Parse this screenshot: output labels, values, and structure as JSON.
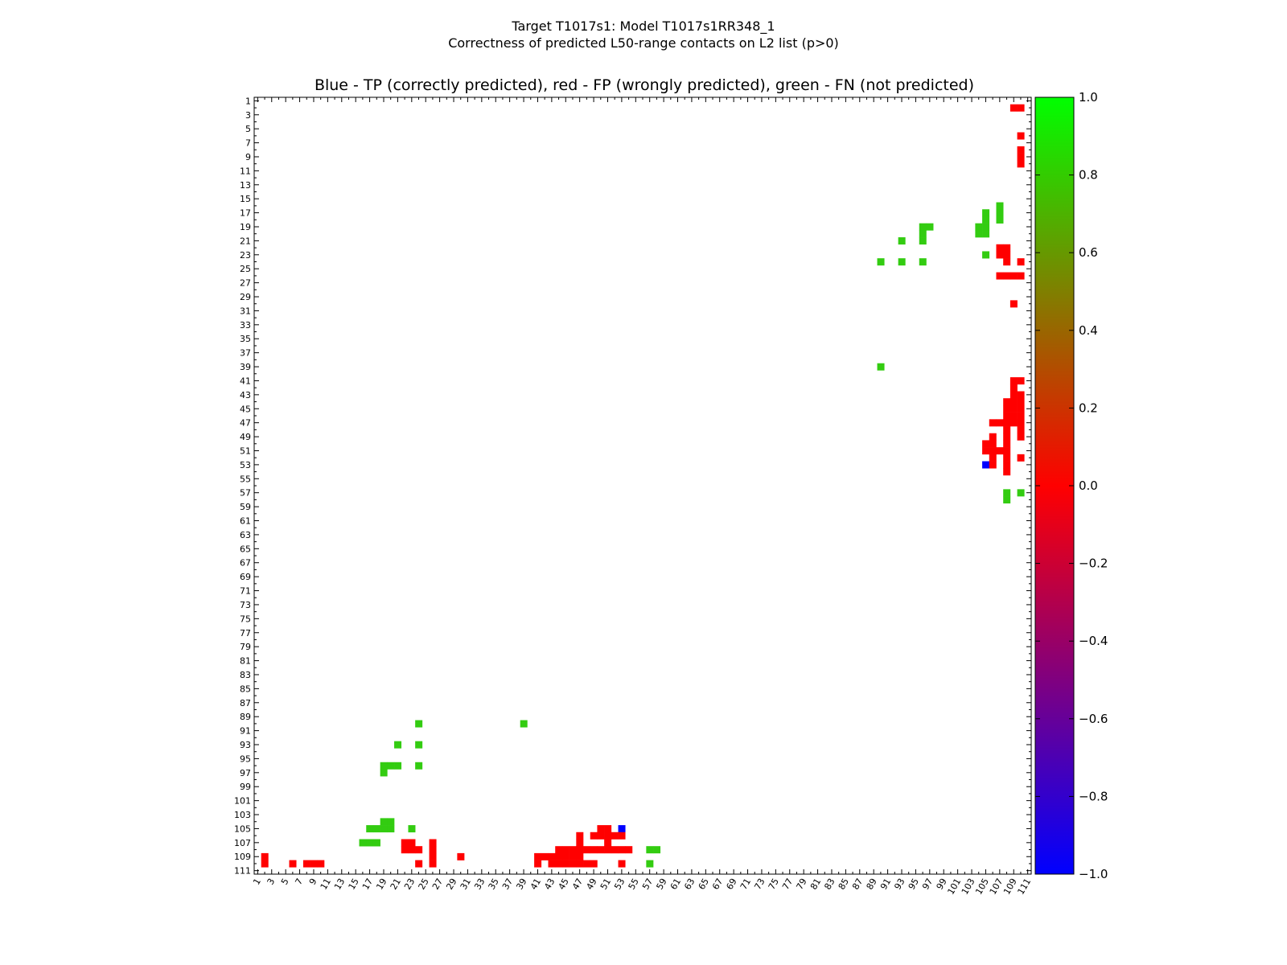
{
  "figure": {
    "suptitle_line1": "Target T1017s1: Model T1017s1RR348_1",
    "suptitle_line2": "Correctness of predicted L50-range contacts on L2 list (p>0)",
    "title": "Blue - TP (correctly predicted), red - FP (wrongly predicted), green - FN (not predicted)"
  },
  "chart_data": {
    "type": "heatmap",
    "title": "Blue - TP (correctly predicted), red - FP (wrongly predicted), green - FN (not predicted)",
    "xlabel": "",
    "ylabel": "",
    "x_range": [
      1,
      111
    ],
    "y_range": [
      1,
      111
    ],
    "x_ticks": [
      1,
      3,
      5,
      7,
      9,
      11,
      13,
      15,
      17,
      19,
      21,
      23,
      25,
      27,
      29,
      31,
      33,
      35,
      37,
      39,
      41,
      43,
      45,
      47,
      49,
      51,
      53,
      55,
      57,
      59,
      61,
      63,
      65,
      67,
      69,
      71,
      73,
      75,
      77,
      79,
      81,
      83,
      85,
      87,
      89,
      91,
      93,
      95,
      97,
      99,
      101,
      103,
      105,
      107,
      109,
      111
    ],
    "y_ticks": [
      1,
      3,
      5,
      7,
      9,
      11,
      13,
      15,
      17,
      19,
      21,
      23,
      25,
      27,
      29,
      31,
      33,
      35,
      37,
      39,
      41,
      43,
      45,
      47,
      49,
      51,
      53,
      55,
      57,
      59,
      61,
      63,
      65,
      67,
      69,
      71,
      73,
      75,
      77,
      79,
      81,
      83,
      85,
      87,
      89,
      91,
      93,
      95,
      97,
      99,
      101,
      103,
      105,
      107,
      109,
      111
    ],
    "legend": {
      "TP": {
        "value": -1,
        "color": "#0000ff"
      },
      "FP": {
        "value": 0,
        "color": "#ff0000"
      },
      "FN": {
        "value": 0.8,
        "color": "#33cc11"
      }
    },
    "colorbar": {
      "min": -1.0,
      "max": 1.0,
      "tick_values": [
        1.0,
        0.8,
        0.6,
        0.4,
        0.2,
        0.0,
        -0.2,
        -0.4,
        -0.6,
        -0.8,
        -1.0
      ],
      "tick_labels": [
        "1.0",
        "0.8",
        "0.6",
        "0.4",
        "0.2",
        "0.0",
        "−0.2",
        "−0.4",
        "−0.6",
        "−0.8",
        "−1.0"
      ],
      "colors": [
        "#0000ff",
        "#ff0000",
        "#00ff00"
      ]
    },
    "cells": [
      {
        "row": 2,
        "cols": [
          109,
          110
        ],
        "value": 0
      },
      {
        "row": 6,
        "cols": [
          110
        ],
        "value": 0
      },
      {
        "row": 8,
        "cols": [
          110
        ],
        "value": 0
      },
      {
        "row": 9,
        "cols": [
          110
        ],
        "value": 0
      },
      {
        "row": 10,
        "cols": [
          110
        ],
        "value": 0
      },
      {
        "row": 16,
        "cols": [
          107
        ],
        "value": 0.8
      },
      {
        "row": 17,
        "cols": [
          105,
          107
        ],
        "value": 0.8
      },
      {
        "row": 18,
        "cols": [
          105,
          107
        ],
        "value": 0.8
      },
      {
        "row": 19,
        "cols": [
          96,
          97,
          104,
          105
        ],
        "value": 0.8
      },
      {
        "row": 20,
        "cols": [
          96,
          104,
          105
        ],
        "value": 0.8
      },
      {
        "row": 21,
        "cols": [
          93,
          96
        ],
        "value": 0.8
      },
      {
        "row": 22,
        "cols": [
          107,
          108
        ],
        "value": 0
      },
      {
        "row": 23,
        "cols": [
          105
        ],
        "value": 0.8
      },
      {
        "row": 23,
        "cols": [
          107,
          108
        ],
        "value": 0
      },
      {
        "row": 24,
        "cols": [
          90,
          93,
          96
        ],
        "value": 0.8
      },
      {
        "row": 24,
        "cols": [
          108,
          110
        ],
        "value": 0
      },
      {
        "row": 26,
        "cols": [
          107,
          108,
          109,
          110
        ],
        "value": 0
      },
      {
        "row": 30,
        "cols": [
          109
        ],
        "value": 0
      },
      {
        "row": 39,
        "cols": [
          90
        ],
        "value": 0.8
      },
      {
        "row": 41,
        "cols": [
          109,
          110
        ],
        "value": 0
      },
      {
        "row": 42,
        "cols": [
          109
        ],
        "value": 0
      },
      {
        "row": 43,
        "cols": [
          109,
          110
        ],
        "value": 0
      },
      {
        "row": 44,
        "cols": [
          108,
          109,
          110
        ],
        "value": 0
      },
      {
        "row": 45,
        "cols": [
          108,
          109,
          110
        ],
        "value": 0
      },
      {
        "row": 46,
        "cols": [
          108,
          109,
          110
        ],
        "value": 0
      },
      {
        "row": 47,
        "cols": [
          106,
          107,
          108,
          109,
          110
        ],
        "value": 0
      },
      {
        "row": 48,
        "cols": [
          108,
          110
        ],
        "value": 0
      },
      {
        "row": 49,
        "cols": [
          106,
          108,
          110
        ],
        "value": 0
      },
      {
        "row": 50,
        "cols": [
          105,
          106,
          108
        ],
        "value": 0
      },
      {
        "row": 51,
        "cols": [
          105,
          106,
          107,
          108
        ],
        "value": 0
      },
      {
        "row": 52,
        "cols": [
          106,
          108,
          110
        ],
        "value": 0
      },
      {
        "row": 53,
        "cols": [
          105
        ],
        "value": -1
      },
      {
        "row": 53,
        "cols": [
          106,
          108
        ],
        "value": 0
      },
      {
        "row": 54,
        "cols": [
          108
        ],
        "value": 0
      },
      {
        "row": 57,
        "cols": [
          108,
          110
        ],
        "value": 0.8
      },
      {
        "row": 58,
        "cols": [
          108
        ],
        "value": 0.8
      },
      {
        "row": 90,
        "cols": [
          24,
          39
        ],
        "value": 0.8
      },
      {
        "row": 93,
        "cols": [
          21,
          24
        ],
        "value": 0.8
      },
      {
        "row": 96,
        "cols": [
          19,
          20,
          21,
          24
        ],
        "value": 0.8
      },
      {
        "row": 97,
        "cols": [
          19
        ],
        "value": 0.8
      },
      {
        "row": 104,
        "cols": [
          19,
          20
        ],
        "value": 0.8
      },
      {
        "row": 105,
        "cols": [
          17,
          18,
          19,
          20,
          23
        ],
        "value": 0.8
      },
      {
        "row": 105,
        "cols": [
          50,
          51
        ],
        "value": 0
      },
      {
        "row": 105,
        "cols": [
          53
        ],
        "value": -1
      },
      {
        "row": 106,
        "cols": [
          47,
          49,
          50,
          51,
          52,
          53
        ],
        "value": 0
      },
      {
        "row": 107,
        "cols": [
          16,
          17,
          18
        ],
        "value": 0.8
      },
      {
        "row": 107,
        "cols": [
          22,
          23,
          26,
          47,
          51
        ],
        "value": 0
      },
      {
        "row": 108,
        "cols": [
          22,
          23,
          24,
          26,
          44,
          45,
          46,
          47,
          48,
          49,
          50,
          51,
          52,
          53,
          54
        ],
        "value": 0
      },
      {
        "row": 108,
        "cols": [
          57,
          58
        ],
        "value": 0.8
      },
      {
        "row": 109,
        "cols": [
          2,
          26,
          30,
          41,
          42,
          43,
          44,
          45,
          46,
          47
        ],
        "value": 0
      },
      {
        "row": 110,
        "cols": [
          2,
          6,
          8,
          9,
          10,
          24,
          26,
          41,
          43,
          44,
          45,
          46,
          47,
          48,
          49,
          53
        ],
        "value": 0
      },
      {
        "row": 110,
        "cols": [
          57
        ],
        "value": 0.8
      }
    ]
  }
}
